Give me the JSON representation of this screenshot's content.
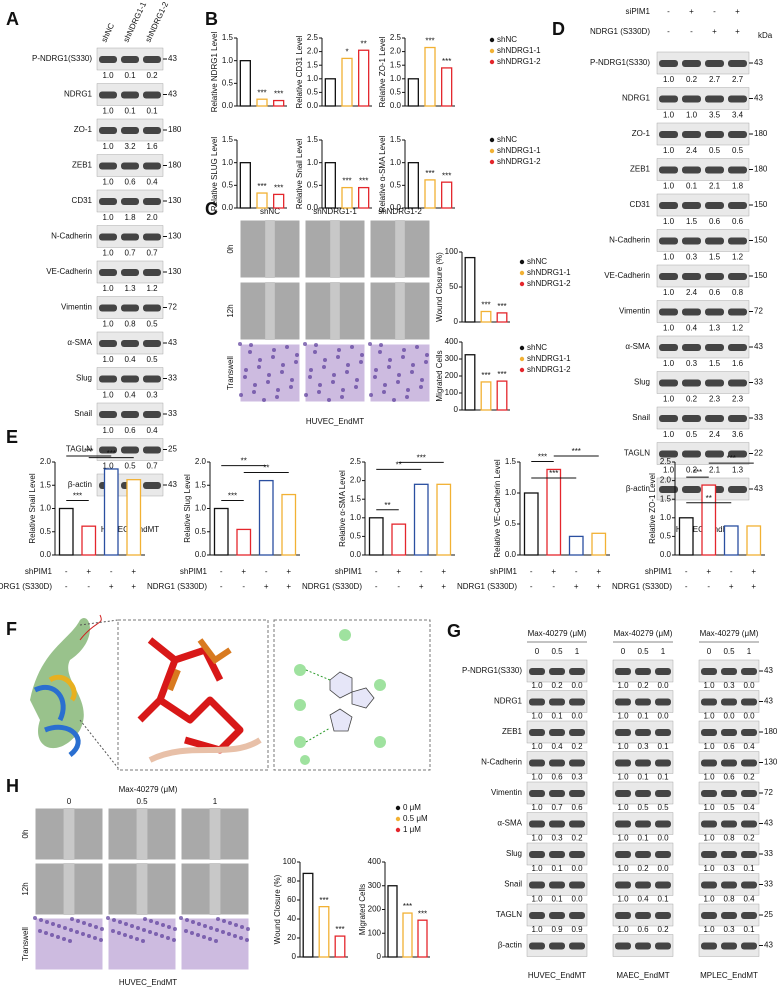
{
  "A": {
    "letter": "A",
    "lanes": [
      "shNC",
      "shNDRG1-1",
      "shNDRG1-2"
    ],
    "footer": "HUVEC_EndMT",
    "rows": [
      {
        "label": "P-NDRG1(S330)",
        "kda": 43,
        "quant": [
          "1.0",
          "0.1",
          "0.2"
        ]
      },
      {
        "label": "NDRG1",
        "kda": 43,
        "quant": [
          "1.0",
          "0.1",
          "0.1"
        ]
      },
      {
        "label": "ZO-1",
        "kda": 180,
        "quant": [
          "1.0",
          "3.2",
          "1.6"
        ]
      },
      {
        "label": "ZEB1",
        "kda": 180,
        "quant": [
          "1.0",
          "0.6",
          "0.4"
        ]
      },
      {
        "label": "CD31",
        "kda": 130,
        "quant": [
          "1.0",
          "1.8",
          "2.0"
        ]
      },
      {
        "label": "N-Cadherin",
        "kda": 130,
        "quant": [
          "1.0",
          "0.7",
          "0.7"
        ]
      },
      {
        "label": "VE-Cadherin",
        "kda": 130,
        "quant": [
          "1.0",
          "1.3",
          "1.2"
        ]
      },
      {
        "label": "Vimentin",
        "kda": 72,
        "quant": [
          "1.0",
          "0.8",
          "0.5"
        ]
      },
      {
        "label": "α-SMA",
        "kda": 43,
        "quant": [
          "1.0",
          "0.4",
          "0.5"
        ]
      },
      {
        "label": "Slug",
        "kda": 33,
        "quant": [
          "1.0",
          "0.4",
          "0.3"
        ]
      },
      {
        "label": "Snail",
        "kda": 33,
        "quant": [
          "1.0",
          "0.6",
          "0.4"
        ]
      },
      {
        "label": "TAGLN",
        "kda": 25,
        "quant": [
          "1.0",
          "0.5",
          "0.7"
        ]
      },
      {
        "label": "β-actin",
        "kda": 43
      }
    ]
  },
  "B": {
    "letter": "B",
    "series": [
      {
        "name": "shNC",
        "color": "#111111"
      },
      {
        "name": "shNDRG1-1",
        "color": "#f2b134"
      },
      {
        "name": "shNDRG1-2",
        "color": "#e4262c"
      }
    ],
    "charts": [
      {
        "ylabel": "Relative NDRG1 Level",
        "ylim": [
          0,
          1.5
        ],
        "yticks": [
          {
            "value": 0,
            "label": "0.0"
          },
          0.5,
          {
            "value": 1,
            "label": "1.0"
          },
          1.5
        ],
        "values": [
          1.0,
          0.15,
          0.12
        ],
        "significance": [
          "***",
          "***"
        ]
      },
      {
        "ylabel": "Relative CD31 Level",
        "ylim": [
          0,
          2.5
        ],
        "yticks": [
          {
            "value": 0,
            "label": "0.0"
          },
          0.5,
          {
            "value": 1,
            "label": "1.0"
          },
          1.5,
          {
            "value": 2,
            "label": "2.0"
          },
          2.5
        ],
        "values": [
          1.0,
          1.75,
          2.05
        ],
        "significance": [
          "*",
          "**"
        ]
      },
      {
        "ylabel": "Relative ZO-1 Level",
        "ylim": [
          0,
          2.5
        ],
        "yticks": [
          {
            "value": 0,
            "label": "0.0"
          },
          0.5,
          {
            "value": 1,
            "label": "1.0"
          },
          1.5,
          {
            "value": 2,
            "label": "2.0"
          },
          2.5
        ],
        "values": [
          1.0,
          2.15,
          1.4
        ],
        "significance": [
          "***",
          "***"
        ]
      },
      {
        "ylabel": "Relative SLUG Level",
        "ylim": [
          0,
          1.5
        ],
        "yticks": [
          {
            "value": 0,
            "label": "0.0"
          },
          0.5,
          {
            "value": 1,
            "label": "1.0"
          },
          1.5
        ],
        "values": [
          1.0,
          0.33,
          0.3
        ],
        "significance": [
          "***",
          "***"
        ]
      },
      {
        "ylabel": "Relative Snail Level",
        "ylim": [
          0,
          1.5
        ],
        "yticks": [
          {
            "value": 0,
            "label": "0.0"
          },
          0.5,
          {
            "value": 1,
            "label": "1.0"
          },
          1.5
        ],
        "values": [
          1.0,
          0.45,
          0.45
        ],
        "significance": [
          "***",
          "***"
        ]
      },
      {
        "ylabel": "Relative α-SMA Level",
        "ylim": [
          0,
          1.5
        ],
        "yticks": [
          {
            "value": 0,
            "label": "0.0"
          },
          0.5,
          {
            "value": 1,
            "label": "1.0"
          },
          1.5
        ],
        "values": [
          1.0,
          0.62,
          0.57
        ],
        "significance": [
          "***",
          "***"
        ]
      }
    ]
  },
  "C": {
    "letter": "C",
    "columns": [
      "shNC",
      "shNDRG1-1",
      "shNDRG1-2"
    ],
    "rows": [
      "0h",
      "12h",
      "Transwell"
    ],
    "footer": "HUVEC_EndMT",
    "series": [
      {
        "name": "shNC",
        "color": "#111111"
      },
      {
        "name": "shNDRG1-1",
        "color": "#f2b134"
      },
      {
        "name": "shNDRG1-2",
        "color": "#e4262c"
      }
    ],
    "charts": [
      {
        "ylabel": "Wound Closure (%)",
        "ylim": [
          0,
          100
        ],
        "yticks": [
          0,
          50,
          100
        ],
        "values": [
          92,
          15,
          13
        ],
        "significance": [
          "***",
          "***"
        ]
      },
      {
        "ylabel": "Migrated Cells",
        "ylim": [
          0,
          400
        ],
        "yticks": [
          0,
          100,
          200,
          300,
          400
        ],
        "values": [
          325,
          165,
          170
        ],
        "significance": [
          "***",
          "***"
        ]
      }
    ]
  },
  "D": {
    "letter": "D",
    "kda_label": "kDa",
    "footer": "HUVEC_EndMT",
    "conditions": [
      {
        "name": "siPIM1",
        "signs": [
          "-",
          "+",
          "-",
          "+"
        ]
      },
      {
        "name": "NDRG1 (S330D)",
        "signs": [
          "-",
          "-",
          "+",
          "+"
        ]
      }
    ],
    "rows": [
      {
        "label": "P-NDRG1(S330)",
        "kda": 43,
        "quant": [
          "1.0",
          "0.2",
          "2.7",
          "2.7"
        ]
      },
      {
        "label": "NDRG1",
        "kda": 43,
        "quant": [
          "1.0",
          "1.0",
          "3.5",
          "3.4"
        ]
      },
      {
        "label": "ZO-1",
        "kda": 180,
        "quant": [
          "1.0",
          "2.4",
          "0.5",
          "0.5"
        ]
      },
      {
        "label": "ZEB1",
        "kda": 180,
        "quant": [
          "1.0",
          "0.1",
          "2.1",
          "1.8"
        ]
      },
      {
        "label": "CD31",
        "kda": 150,
        "quant": [
          "1.0",
          "1.5",
          "0.6",
          "0.6"
        ]
      },
      {
        "label": "N-Cadherin",
        "kda": 150,
        "quant": [
          "1.0",
          "0.3",
          "1.5",
          "1.2"
        ]
      },
      {
        "label": "VE-Cadherin",
        "kda": 150,
        "quant": [
          "1.0",
          "2.4",
          "0.6",
          "0.8"
        ]
      },
      {
        "label": "Vimentin",
        "kda": 72,
        "quant": [
          "1.0",
          "0.4",
          "1.3",
          "1.2"
        ]
      },
      {
        "label": "α-SMA",
        "kda": 43,
        "quant": [
          "1.0",
          "0.3",
          "1.5",
          "1.6"
        ]
      },
      {
        "label": "Slug",
        "kda": 33,
        "quant": [
          "1.0",
          "0.2",
          "2.3",
          "2.3"
        ]
      },
      {
        "label": "Snail",
        "kda": 33,
        "quant": [
          "1.0",
          "0.5",
          "2.4",
          "3.6"
        ]
      },
      {
        "label": "TAGLN",
        "kda": 22,
        "quant": [
          "1.0",
          "0.2",
          "2.1",
          "1.3"
        ]
      },
      {
        "label": "β-actin",
        "kda": 43
      }
    ]
  },
  "E": {
    "letter": "E",
    "colors": [
      "#111111",
      "#e4262c",
      "#2a4fa0",
      "#f2b134"
    ],
    "conditions": [
      {
        "name": "shPIM1",
        "signs": [
          "-",
          "+",
          "-",
          "+"
        ]
      },
      {
        "name": "NDRG1 (S330D)",
        "signs": [
          "-",
          "-",
          "+",
          "+"
        ]
      }
    ],
    "charts": [
      {
        "ylabel": "Relative Snail Level",
        "ylim": [
          0,
          2
        ],
        "yticks": [
          {
            "value": 0,
            "label": "0.0"
          },
          0.5,
          {
            "value": 1,
            "label": "1.0"
          },
          1.5,
          {
            "value": 2,
            "label": "2.0"
          }
        ],
        "values": [
          1.0,
          0.62,
          1.85,
          1.62
        ],
        "significance": [
          "***",
          "***",
          "***"
        ]
      },
      {
        "ylabel": "Relative Slug Level",
        "ylim": [
          0,
          2
        ],
        "yticks": [
          {
            "value": 0,
            "label": "0.0"
          },
          0.5,
          {
            "value": 1,
            "label": "1.0"
          },
          1.5,
          {
            "value": 2,
            "label": "2.0"
          }
        ],
        "values": [
          1.0,
          0.55,
          1.6,
          1.3
        ],
        "significance": [
          "***",
          "**",
          "**"
        ]
      },
      {
        "ylabel": "Relative α-SMA Level",
        "ylim": [
          0,
          2.5
        ],
        "yticks": [
          {
            "value": 0,
            "label": "0.0"
          },
          0.5,
          {
            "value": 1,
            "label": "1.0"
          },
          1.5,
          {
            "value": 2,
            "label": "2.0"
          },
          2.5
        ],
        "values": [
          1.0,
          0.83,
          1.9,
          1.9
        ],
        "significance": [
          "**",
          "**",
          "***"
        ]
      },
      {
        "ylabel": "Relative VE-Cadherin Level",
        "ylim": [
          0,
          1.5
        ],
        "yticks": [
          {
            "value": 0,
            "label": "0.0"
          },
          0.5,
          {
            "value": 1,
            "label": "1.0"
          },
          1.5
        ],
        "values": [
          1.0,
          1.38,
          0.3,
          0.35
        ],
        "significance": [
          "***",
          "***",
          "***"
        ]
      },
      {
        "ylabel": "Relative ZO-1 Level",
        "ylim": [
          0,
          2.5
        ],
        "yticks": [
          {
            "value": 0,
            "label": "0.0"
          },
          0.5,
          {
            "value": 1,
            "label": "1.0"
          },
          1.5,
          {
            "value": 2,
            "label": "2.0"
          },
          2.5
        ],
        "values": [
          1.0,
          1.88,
          0.78,
          0.78
        ],
        "significance": [
          "***",
          "**",
          "***"
        ]
      }
    ]
  },
  "F": {
    "letter": "F"
  },
  "G": {
    "letter": "G",
    "header": "Max-40279 (μM)",
    "doses": [
      "0",
      "0.5",
      "1"
    ],
    "blocks": [
      "HUVEC_EndMT",
      "MAEC_EndMT",
      "MPLEC_EndMT"
    ],
    "rows": [
      {
        "label": "P-NDRG1(S330)",
        "kda": 43,
        "quant": [
          [
            "1.0",
            "0.2",
            "0.0"
          ],
          [
            "1.0",
            "0.2",
            "0.0"
          ],
          [
            "1.0",
            "0.3",
            "0.0"
          ]
        ]
      },
      {
        "label": "NDRG1",
        "kda": 43,
        "quant": [
          [
            "1.0",
            "0.1",
            "0.0"
          ],
          [
            "1.0",
            "0.1",
            "0.0"
          ],
          [
            "1.0",
            "0.0",
            "0.0"
          ]
        ]
      },
      {
        "label": "ZEB1",
        "kda": 180,
        "quant": [
          [
            "1.0",
            "0.4",
            "0.2"
          ],
          [
            "1.0",
            "0.3",
            "0.1"
          ],
          [
            "1.0",
            "0.6",
            "0.4"
          ]
        ]
      },
      {
        "label": "N-Cadherin",
        "kda": 130,
        "quant": [
          [
            "1.0",
            "0.6",
            "0.3"
          ],
          [
            "1.0",
            "0.1",
            "0.1"
          ],
          [
            "1.0",
            "0.6",
            "0.2"
          ]
        ]
      },
      {
        "label": "Vimentin",
        "kda": 72,
        "quant": [
          [
            "1.0",
            "0.7",
            "0.6"
          ],
          [
            "1.0",
            "0.5",
            "0.5"
          ],
          [
            "1.0",
            "0.5",
            "0.4"
          ]
        ]
      },
      {
        "label": "α-SMA",
        "kda": 43,
        "quant": [
          [
            "1.0",
            "0.3",
            "0.2"
          ],
          [
            "1.0",
            "0.1",
            "0.0"
          ],
          [
            "1.0",
            "0.8",
            "0.2"
          ]
        ]
      },
      {
        "label": "Slug",
        "kda": 33,
        "quant": [
          [
            "1.0",
            "0.1",
            "0.0"
          ],
          [
            "1.0",
            "0.2",
            "0.0"
          ],
          [
            "1.0",
            "0.3",
            "0.1"
          ]
        ]
      },
      {
        "label": "Snail",
        "kda": 33,
        "quant": [
          [
            "1.0",
            "0.1",
            "0.0"
          ],
          [
            "1.0",
            "0.4",
            "0.1"
          ],
          [
            "1.0",
            "0.8",
            "0.4"
          ]
        ]
      },
      {
        "label": "TAGLN",
        "kda": 25,
        "quant": [
          [
            "1.0",
            "0.9",
            "0.9"
          ],
          [
            "1.0",
            "0.6",
            "0.2"
          ],
          [
            "1.0",
            "0.3",
            "0.1"
          ]
        ]
      },
      {
        "label": "β-actin",
        "kda": 43
      }
    ]
  },
  "H": {
    "letter": "H",
    "header": "Max-40279 (μM)",
    "doses": [
      "0",
      "0.5",
      "1"
    ],
    "rows": [
      "0h",
      "12h",
      "Transwell"
    ],
    "footer": "HUVEC_EndMT",
    "series": [
      {
        "name": "0 μM",
        "color": "#111111"
      },
      {
        "name": "0.5 μM",
        "color": "#f2b134"
      },
      {
        "name": "1 μM",
        "color": "#e4262c"
      }
    ],
    "charts": [
      {
        "ylabel": "Wound Closure (%)",
        "ylim": [
          0,
          100
        ],
        "yticks": [
          0,
          20,
          40,
          60,
          80,
          100
        ],
        "values": [
          88,
          53,
          22
        ],
        "significance": [
          "***",
          "***"
        ]
      },
      {
        "ylabel": "Migrated Cells",
        "ylim": [
          0,
          400
        ],
        "yticks": [
          0,
          100,
          200,
          300,
          400
        ],
        "values": [
          300,
          185,
          155
        ],
        "significance": [
          "***",
          "***"
        ]
      }
    ]
  }
}
